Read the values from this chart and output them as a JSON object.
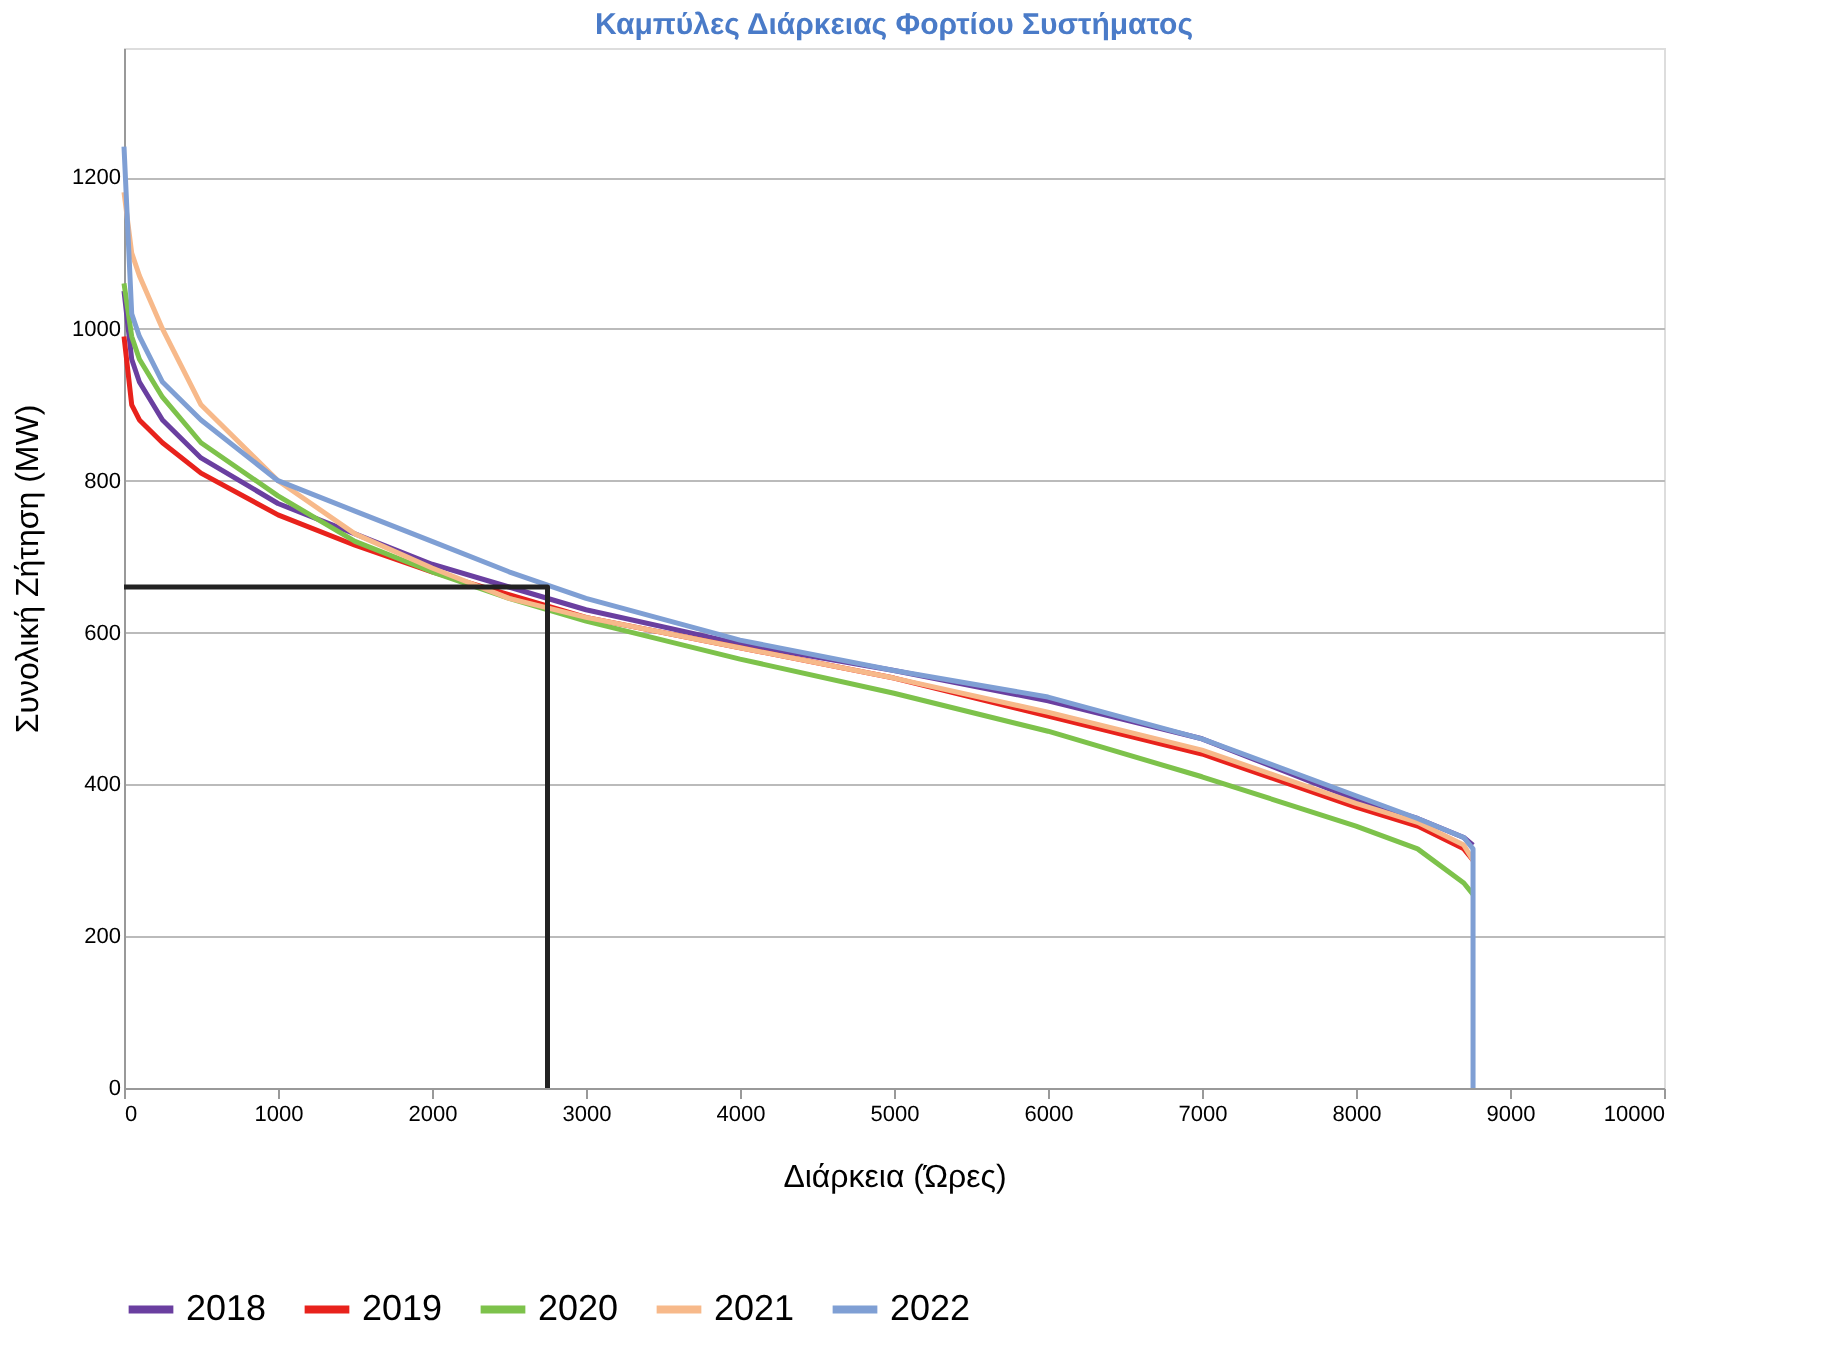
{
  "chart_data": {
    "type": "line",
    "title": "Καμπύλες Διάρκειας Φορτίου Συστήματος",
    "xlabel": "Διάρκεια (Ώρες)",
    "ylabel": "Συνολική Ζήτηση (MW)",
    "x": [
      0,
      50,
      100,
      250,
      500,
      1000,
      1500,
      2000,
      2500,
      3000,
      4000,
      5000,
      6000,
      7000,
      8000,
      8400,
      8700,
      8760
    ],
    "series": [
      {
        "name": "2018",
        "color": "#6a3fa0",
        "values": [
          1050,
          960,
          930,
          880,
          830,
          770,
          730,
          690,
          660,
          630,
          585,
          550,
          510,
          460,
          380,
          355,
          330,
          320
        ]
      },
      {
        "name": "2019",
        "color": "#e8221c",
        "values": [
          990,
          900,
          880,
          850,
          810,
          755,
          715,
          680,
          650,
          620,
          580,
          540,
          490,
          440,
          370,
          345,
          315,
          300
        ]
      },
      {
        "name": "2020",
        "color": "#7dc24b",
        "values": [
          1060,
          990,
          960,
          910,
          850,
          780,
          720,
          680,
          645,
          615,
          565,
          520,
          470,
          410,
          345,
          315,
          270,
          255
        ]
      },
      {
        "name": "2021",
        "color": "#f7b98a",
        "values": [
          1180,
          1100,
          1070,
          1000,
          900,
          800,
          730,
          685,
          645,
          620,
          580,
          540,
          495,
          445,
          375,
          350,
          320,
          300
        ]
      },
      {
        "name": "2022",
        "color": "#7f9fd4",
        "x": [
          0,
          50,
          100,
          250,
          500,
          1000,
          1500,
          2000,
          2500,
          3000,
          4000,
          5000,
          6000,
          7000,
          8000,
          8400,
          8700,
          8760,
          8760
        ],
        "values": [
          1240,
          1020,
          990,
          930,
          880,
          800,
          760,
          720,
          680,
          645,
          590,
          550,
          515,
          460,
          385,
          355,
          330,
          315,
          0
        ]
      },
      {
        "color": "#222222",
        "x": [
          0,
          2750,
          2750
        ],
        "values": [
          660,
          660,
          0
        ]
      }
    ],
    "xlim": [
      0,
      10000
    ],
    "xticks": [
      0,
      1000,
      2000,
      3000,
      4000,
      5000,
      6000,
      7000,
      8000,
      9000,
      10000
    ],
    "ylim": [
      0,
      1370
    ],
    "yticks": [
      0,
      200,
      400,
      600,
      800,
      1000,
      1200
    ],
    "grid": "y",
    "legend": "bottom",
    "marker": "none",
    "line_style": "solid"
  }
}
